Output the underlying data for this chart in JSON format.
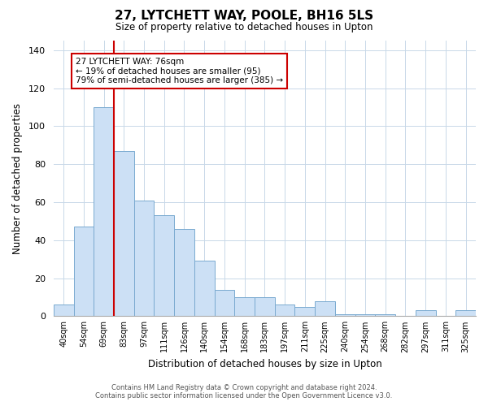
{
  "title": "27, LYTCHETT WAY, POOLE, BH16 5LS",
  "subtitle": "Size of property relative to detached houses in Upton",
  "xlabel": "Distribution of detached houses by size in Upton",
  "ylabel": "Number of detached properties",
  "bar_labels": [
    "40sqm",
    "54sqm",
    "69sqm",
    "83sqm",
    "97sqm",
    "111sqm",
    "126sqm",
    "140sqm",
    "154sqm",
    "168sqm",
    "183sqm",
    "197sqm",
    "211sqm",
    "225sqm",
    "240sqm",
    "254sqm",
    "268sqm",
    "282sqm",
    "297sqm",
    "311sqm",
    "325sqm"
  ],
  "bar_values": [
    6,
    47,
    110,
    87,
    61,
    53,
    46,
    29,
    14,
    10,
    10,
    6,
    5,
    8,
    1,
    1,
    1,
    0,
    3,
    0,
    3
  ],
  "bar_color": "#cce0f5",
  "bar_edge_color": "#7aaad0",
  "vline_color": "#cc0000",
  "vline_x_index": 2.5,
  "ylim": [
    0,
    145
  ],
  "yticks": [
    0,
    20,
    40,
    60,
    80,
    100,
    120,
    140
  ],
  "annotation_text": "27 LYTCHETT WAY: 76sqm\n← 19% of detached houses are smaller (95)\n79% of semi-detached houses are larger (385) →",
  "annotation_box_edge": "#cc0000",
  "footer_line1": "Contains HM Land Registry data © Crown copyright and database right 2024.",
  "footer_line2": "Contains public sector information licensed under the Open Government Licence v3.0.",
  "background_color": "#ffffff",
  "grid_color": "#c8d8e8"
}
